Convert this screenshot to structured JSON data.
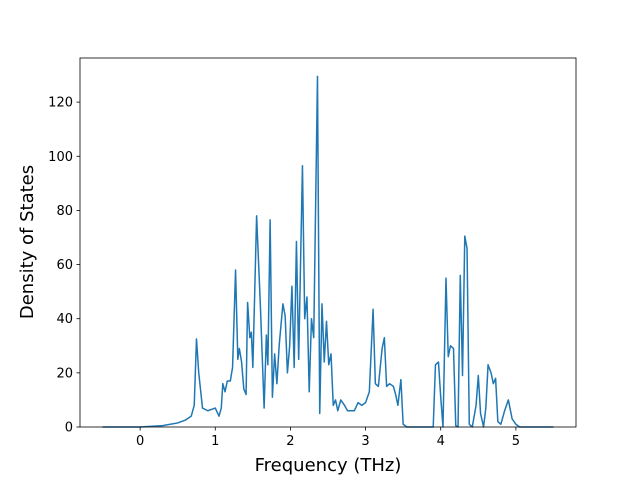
{
  "chart_data": {
    "type": "line",
    "xlabel": "Frequency (THz)",
    "ylabel": "Density of States",
    "xlim": [
      -0.8,
      5.8
    ],
    "ylim": [
      0,
      136.3
    ],
    "xticks": [
      0,
      1,
      2,
      3,
      4,
      5
    ],
    "yticks": [
      0,
      20,
      40,
      60,
      80,
      100,
      120
    ],
    "series": [
      {
        "color": "#1f77b4",
        "x": [
          -0.5,
          0.0,
          0.3,
          0.5,
          0.6,
          0.68,
          0.72,
          0.75,
          0.78,
          0.83,
          0.9,
          1.0,
          1.05,
          1.08,
          1.1,
          1.13,
          1.16,
          1.2,
          1.23,
          1.27,
          1.3,
          1.32,
          1.35,
          1.38,
          1.41,
          1.43,
          1.46,
          1.48,
          1.5,
          1.55,
          1.6,
          1.65,
          1.68,
          1.7,
          1.73,
          1.76,
          1.79,
          1.82,
          1.85,
          1.9,
          1.93,
          1.96,
          1.99,
          2.02,
          2.05,
          2.08,
          2.11,
          2.16,
          2.19,
          2.22,
          2.25,
          2.28,
          2.31,
          2.36,
          2.39,
          2.42,
          2.45,
          2.48,
          2.51,
          2.54,
          2.57,
          2.6,
          2.63,
          2.67,
          2.72,
          2.76,
          2.85,
          2.9,
          2.95,
          3.0,
          3.05,
          3.1,
          3.13,
          3.17,
          3.22,
          3.25,
          3.28,
          3.32,
          3.37,
          3.4,
          3.43,
          3.47,
          3.5,
          3.55,
          3.9,
          3.93,
          3.97,
          4.0,
          4.03,
          4.07,
          4.1,
          4.13,
          4.17,
          4.2,
          4.23,
          4.26,
          4.29,
          4.32,
          4.35,
          4.38,
          4.42,
          4.47,
          4.5,
          4.53,
          4.57,
          4.6,
          4.63,
          4.67,
          4.7,
          4.73,
          4.76,
          4.8,
          4.85,
          4.9,
          4.95,
          5.0,
          5.05,
          5.5
        ],
        "values": [
          0,
          0,
          0.5,
          1.5,
          2.5,
          4,
          8,
          32.5,
          20,
          7,
          6,
          7,
          4,
          7,
          16,
          13,
          17,
          17,
          22,
          58,
          25,
          29,
          24,
          14,
          12,
          46,
          33,
          35,
          22,
          78,
          45,
          7,
          34,
          23,
          76.5,
          11,
          27,
          16,
          30,
          45.5,
          41,
          20,
          30,
          52,
          22,
          68.5,
          25,
          96.5,
          40,
          48,
          13,
          40,
          33,
          129.5,
          5,
          45.5,
          24,
          39,
          23,
          27,
          8,
          10,
          6,
          10,
          8,
          6,
          6,
          9,
          8,
          9,
          13,
          43.5,
          16,
          15,
          29,
          33,
          15,
          16,
          15,
          12,
          8,
          17.5,
          1,
          0,
          0,
          23,
          24,
          11,
          0,
          55,
          26,
          30,
          29,
          0.5,
          0,
          56,
          19,
          70.5,
          66,
          1,
          0,
          8,
          19,
          5,
          0,
          7,
          23,
          20,
          16,
          18,
          2,
          1,
          6,
          10,
          3,
          1,
          0,
          0
        ]
      }
    ]
  }
}
